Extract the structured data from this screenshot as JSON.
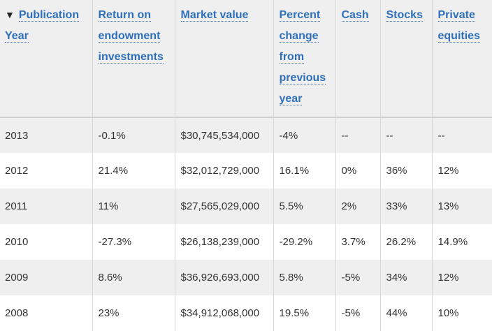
{
  "table": {
    "sort_indicator": "▼",
    "headers": [
      "Publication Year",
      "Return on endowment investments",
      "Market value",
      "Percent change from previous year",
      "Cash",
      "Stocks",
      "Private equities"
    ],
    "rows": [
      [
        "2013",
        "-0.1%",
        "$30,745,534,000",
        "-4%",
        "--",
        "--",
        "--"
      ],
      [
        "2012",
        "21.4%",
        "$32,012,729,000",
        "16.1%",
        "0%",
        "36%",
        "12%"
      ],
      [
        "2011",
        "11%",
        "$27,565,029,000",
        "5.5%",
        "2%",
        "33%",
        "13%"
      ],
      [
        "2010",
        "-27.3%",
        "$26,138,239,000",
        "-29.2%",
        "3.7%",
        "26.2%",
        "14.9%"
      ],
      [
        "2009",
        "8.6%",
        "$36,926,693,000",
        "5.8%",
        "-5%",
        "34%",
        "12%"
      ],
      [
        "2008",
        "23%",
        "$34,912,068,000",
        "19.5%",
        "-5%",
        "44%",
        "10%"
      ]
    ]
  }
}
